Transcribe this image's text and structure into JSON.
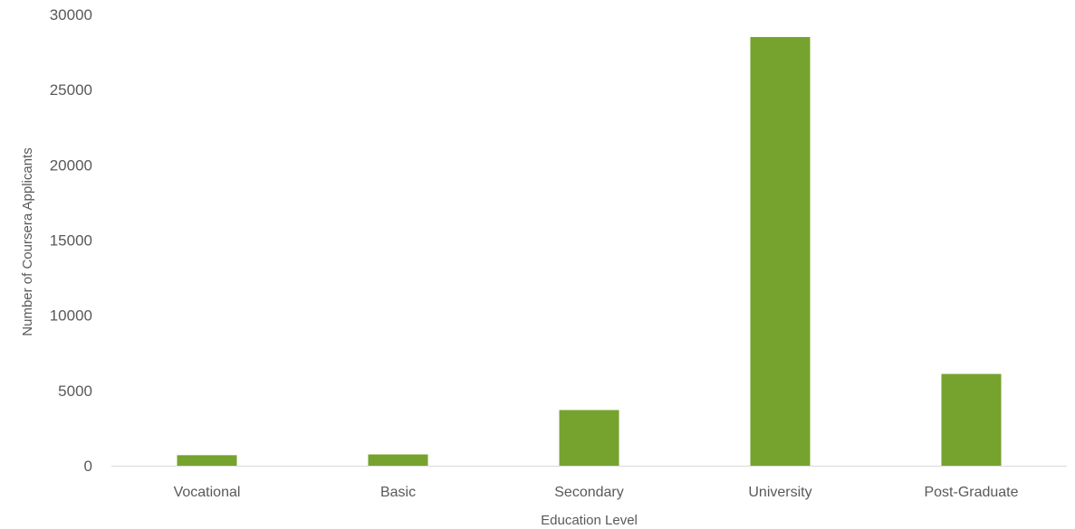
{
  "chart_data": {
    "type": "bar",
    "categories": [
      "Vocational",
      "Basic",
      "Secondary",
      "University",
      "Post-Graduate"
    ],
    "values": [
      700,
      750,
      3700,
      28500,
      6100
    ],
    "xlabel": "Education Level",
    "ylabel": "Number of Coursera Applicants",
    "ylim": [
      0,
      30000
    ],
    "yticks": [
      0,
      5000,
      10000,
      15000,
      20000,
      25000,
      30000
    ],
    "grid": false,
    "legend": "none",
    "bar_color": "#76A22E",
    "axis_color": "#D9D9D9"
  }
}
